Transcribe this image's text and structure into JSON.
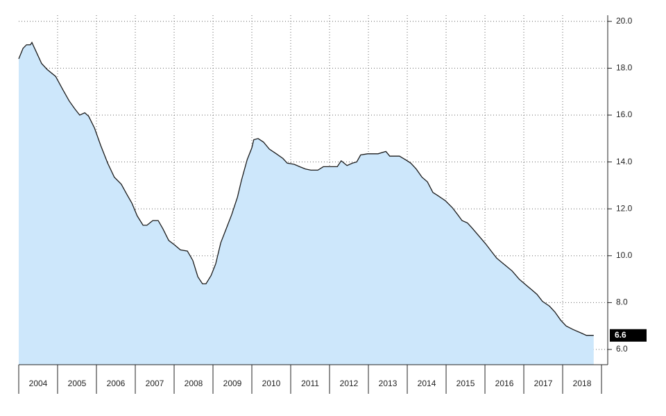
{
  "chart_data": {
    "type": "area",
    "x": [
      2004.0,
      2004.11,
      2004.2,
      2004.3,
      2004.34,
      2004.45,
      2004.59,
      2004.73,
      2004.95,
      2005.13,
      2005.3,
      2005.45,
      2005.57,
      2005.7,
      2005.8,
      2005.95,
      2006.11,
      2006.29,
      2006.46,
      2006.64,
      2006.79,
      2006.91,
      2007.05,
      2007.2,
      2007.3,
      2007.45,
      2007.59,
      2007.71,
      2007.86,
      2008.02,
      2008.16,
      2008.34,
      2008.48,
      2008.61,
      2008.73,
      2008.82,
      2008.95,
      2009.07,
      2009.2,
      2009.34,
      2009.48,
      2009.63,
      2009.73,
      2009.88,
      2010.0,
      2010.05,
      2010.16,
      2010.3,
      2010.45,
      2010.63,
      2010.8,
      2010.91,
      2011.09,
      2011.23,
      2011.38,
      2011.52,
      2011.7,
      2011.84,
      2012.02,
      2012.2,
      2012.3,
      2012.45,
      2012.59,
      2012.7,
      2012.8,
      2012.98,
      2013.25,
      2013.45,
      2013.55,
      2013.8,
      2013.95,
      2014.09,
      2014.23,
      2014.38,
      2014.52,
      2014.66,
      2014.8,
      2014.98,
      2015.16,
      2015.3,
      2015.41,
      2015.55,
      2015.66,
      2015.84,
      2016.02,
      2016.16,
      2016.3,
      2016.48,
      2016.7,
      2016.88,
      2017.02,
      2017.2,
      2017.34,
      2017.48,
      2017.66,
      2017.8,
      2017.95,
      2018.09,
      2018.27,
      2018.48,
      2018.61,
      2018.8
    ],
    "values": [
      18.4,
      18.85,
      19.0,
      19.0,
      19.1,
      18.7,
      18.2,
      17.95,
      17.65,
      17.1,
      16.6,
      16.25,
      16.0,
      16.1,
      15.95,
      15.45,
      14.7,
      13.95,
      13.35,
      13.05,
      12.6,
      12.25,
      11.7,
      11.3,
      11.3,
      11.5,
      11.5,
      11.15,
      10.65,
      10.45,
      10.25,
      10.2,
      9.8,
      9.1,
      8.8,
      8.8,
      9.15,
      9.65,
      10.55,
      11.15,
      11.75,
      12.5,
      13.2,
      14.1,
      14.6,
      14.95,
      15.0,
      14.85,
      14.55,
      14.35,
      14.15,
      13.95,
      13.9,
      13.8,
      13.7,
      13.65,
      13.65,
      13.8,
      13.8,
      13.8,
      14.05,
      13.85,
      13.95,
      14.0,
      14.3,
      14.35,
      14.35,
      14.45,
      14.25,
      14.25,
      14.1,
      13.95,
      13.7,
      13.35,
      13.15,
      12.7,
      12.55,
      12.35,
      12.05,
      11.75,
      11.5,
      11.4,
      11.2,
      10.85,
      10.5,
      10.2,
      9.9,
      9.65,
      9.35,
      9.0,
      8.8,
      8.55,
      8.35,
      8.05,
      7.85,
      7.6,
      7.25,
      7.0,
      6.85,
      6.7,
      6.6,
      6.6
    ],
    "color": "#cde7fb",
    "line_color": "#1a1a1a",
    "xlim": [
      2004,
      2019.16
    ],
    "xticks": [
      {
        "value": 2004,
        "label": "2004"
      },
      {
        "value": 2005,
        "label": "2005"
      },
      {
        "value": 2006,
        "label": "2006"
      },
      {
        "value": 2007,
        "label": "2007"
      },
      {
        "value": 2008,
        "label": "2008"
      },
      {
        "value": 2009,
        "label": "2009"
      },
      {
        "value": 2010,
        "label": "2010"
      },
      {
        "value": 2011,
        "label": "2011"
      },
      {
        "value": 2012,
        "label": "2012"
      },
      {
        "value": 2013,
        "label": "2013"
      },
      {
        "value": 2014,
        "label": "2014"
      },
      {
        "value": 2015,
        "label": "2015"
      },
      {
        "value": 2016,
        "label": "2016"
      },
      {
        "value": 2017,
        "label": "2017"
      },
      {
        "value": 2018,
        "label": "2018"
      }
    ],
    "ylim": [
      5.35,
      20.26
    ],
    "yticks": [
      {
        "value": 6,
        "label": "6.0"
      },
      {
        "value": 8,
        "label": "8.0"
      },
      {
        "value": 10,
        "label": "10.0"
      },
      {
        "value": 12,
        "label": "12.0"
      },
      {
        "value": 14,
        "label": "14.0"
      },
      {
        "value": 16,
        "label": "16.0"
      },
      {
        "value": 18,
        "label": "18.0"
      },
      {
        "value": 20,
        "label": "20.0"
      }
    ],
    "grid": true
  }
}
